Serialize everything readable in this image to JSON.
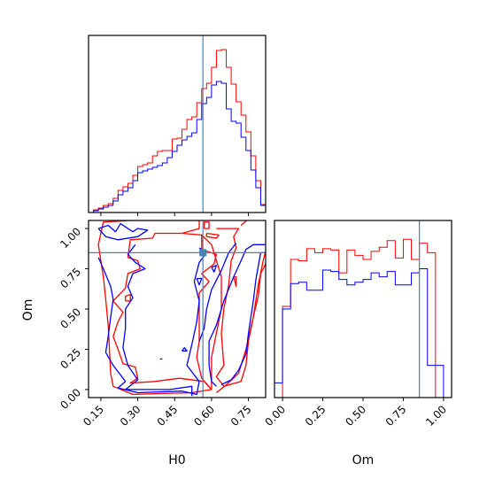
{
  "chart_data": [
    {
      "type": "histogram",
      "panel": "H0-marginal",
      "bin_edges": [
        0.1,
        0.12,
        0.14,
        0.16,
        0.18,
        0.2,
        0.22,
        0.24,
        0.26,
        0.28,
        0.3,
        0.32,
        0.34,
        0.36,
        0.38,
        0.4,
        0.42,
        0.44,
        0.46,
        0.48,
        0.5,
        0.52,
        0.54,
        0.56,
        0.58,
        0.6,
        0.62,
        0.64,
        0.66,
        0.68,
        0.7,
        0.72,
        0.74,
        0.76,
        0.78,
        0.8,
        0.82
      ],
      "series": [
        {
          "color": "#ff0000",
          "values": [
            0.0,
            0.3,
            0.5,
            0.8,
            1.0,
            1.6,
            2.5,
            2.9,
            3.3,
            4.2,
            5.2,
            5.4,
            5.6,
            6.4,
            6.9,
            7.0,
            7.0,
            8.3,
            8.4,
            9.4,
            10.5,
            10.8,
            12.4,
            14.0,
            14.6,
            16.4,
            18.3,
            18.4,
            16.4,
            14.5,
            12.5,
            11.0,
            9.1,
            6.4,
            3.6,
            0.9
          ]
        },
        {
          "color": "#0000ff",
          "values": [
            0.0,
            0.2,
            0.4,
            0.6,
            0.8,
            1.3,
            2.0,
            2.4,
            2.8,
            3.6,
            4.5,
            4.7,
            4.9,
            5.1,
            5.3,
            5.6,
            6.2,
            6.9,
            7.6,
            8.2,
            8.6,
            9.0,
            10.5,
            12.3,
            13.0,
            14.4,
            14.8,
            14.6,
            11.7,
            10.3,
            10.1,
            8.5,
            7.0,
            4.8,
            2.8,
            0.8
          ]
        }
      ],
      "truth": 0.565,
      "xlim": [
        0.1,
        0.82
      ]
    },
    {
      "type": "contour",
      "panel": "H0-vs-Om",
      "xlabel": "H0",
      "ylabel": "Om",
      "xlim": [
        0.1,
        0.82
      ],
      "ylim": [
        -0.05,
        1.05
      ],
      "xticks": [
        "0.15",
        "0.30",
        "0.45",
        "0.60",
        "0.75"
      ],
      "xtick_values": [
        0.15,
        0.3,
        0.45,
        0.6,
        0.75
      ],
      "yticks": [
        "0.00",
        "0.25",
        "0.50",
        "0.75",
        "1.00"
      ],
      "ytick_values": [
        0.0,
        0.25,
        0.5,
        0.75,
        1.0
      ],
      "truth_point": [
        0.565,
        0.85
      ],
      "series": [
        {
          "color": "#ff0000",
          "contours": [
            [
              [
                0.16,
                1.04
              ],
              [
                0.27,
                1.05
              ],
              [
                0.55,
                1.05
              ],
              [
                0.55,
                1.0
              ],
              [
                0.48,
                0.97
              ],
              [
                0.37,
                0.97
              ],
              [
                0.36,
                0.94
              ],
              [
                0.27,
                0.93
              ],
              [
                0.26,
                0.82
              ],
              [
                0.3,
                0.8
              ],
              [
                0.31,
                0.75
              ],
              [
                0.26,
                0.72
              ],
              [
                0.25,
                0.63
              ],
              [
                0.2,
                0.55
              ],
              [
                0.24,
                0.48
              ],
              [
                0.22,
                0.42
              ],
              [
                0.2,
                0.33
              ],
              [
                0.22,
                0.25
              ],
              [
                0.24,
                0.16
              ],
              [
                0.29,
                0.14
              ],
              [
                0.3,
                0.07
              ],
              [
                0.27,
                0.04
              ],
              [
                0.37,
                0.05
              ],
              [
                0.47,
                0.07
              ],
              [
                0.57,
                0.05
              ],
              [
                0.6,
                0.0
              ],
              [
                0.52,
                -0.02
              ],
              [
                0.28,
                -0.03
              ],
              [
                0.2,
                0.02
              ],
              [
                0.19,
                0.1
              ],
              [
                0.18,
                0.4
              ],
              [
                0.17,
                0.56
              ],
              [
                0.16,
                0.7
              ],
              [
                0.14,
                0.9
              ],
              [
                0.16,
                1.04
              ]
            ],
            [
              [
                0.48,
                0.97
              ],
              [
                0.56,
                0.96
              ],
              [
                0.56,
                0.87
              ],
              [
                0.62,
                0.84
              ],
              [
                0.61,
                0.78
              ],
              [
                0.56,
                0.72
              ],
              [
                0.59,
                0.67
              ],
              [
                0.55,
                0.6
              ],
              [
                0.55,
                0.45
              ],
              [
                0.55,
                0.3
              ],
              [
                0.54,
                0.2
              ],
              [
                0.56,
                0.07
              ],
              [
                0.6,
                0.0
              ],
              [
                0.6,
                0.1
              ],
              [
                0.6,
                0.2
              ],
              [
                0.62,
                0.35
              ],
              [
                0.64,
                0.5
              ],
              [
                0.64,
                0.7
              ],
              [
                0.6,
                0.9
              ],
              [
                0.56,
                0.96
              ],
              [
                0.48,
                0.97
              ]
            ],
            [
              [
                0.62,
                -0.02
              ],
              [
                0.66,
                0.03
              ],
              [
                0.71,
                0.1
              ],
              [
                0.74,
                0.25
              ],
              [
                0.77,
                0.45
              ],
              [
                0.79,
                0.58
              ],
              [
                0.8,
                0.72
              ],
              [
                0.82,
                0.78
              ]
            ],
            [
              [
                0.62,
                1.0
              ],
              [
                0.71,
                1.0
              ],
              [
                0.69,
                0.95
              ],
              [
                0.7,
                0.88
              ],
              [
                0.68,
                0.8
              ],
              [
                0.67,
                0.65
              ],
              [
                0.65,
                0.5
              ],
              [
                0.64,
                0.35
              ],
              [
                0.65,
                0.15
              ],
              [
                0.62,
                0.08
              ],
              [
                0.65,
                0.02
              ],
              [
                0.72,
                0.05
              ],
              [
                0.74,
                0.15
              ],
              [
                0.75,
                0.3
              ],
              [
                0.77,
                0.45
              ],
              [
                0.79,
                0.65
              ],
              [
                0.81,
                0.8
              ],
              [
                0.82,
                0.86
              ]
            ],
            [
              [
                0.72,
                1.02
              ],
              [
                0.75,
                1.06
              ],
              [
                0.82,
                1.05
              ]
            ],
            [
              [
                0.25,
                0.55
              ],
              [
                0.27,
                0.55
              ],
              [
                0.27,
                0.59
              ],
              [
                0.25,
                0.58
              ],
              [
                0.25,
                0.55
              ]
            ],
            [
              [
                0.69,
                0.7
              ],
              [
                0.7,
                0.64
              ],
              [
                0.7,
                0.7
              ],
              [
                0.69,
                0.7
              ]
            ],
            [
              [
                0.58,
                0.97
              ],
              [
                0.63,
                0.96
              ],
              [
                0.62,
                0.94
              ],
              [
                0.58,
                0.95
              ],
              [
                0.58,
                0.97
              ]
            ],
            [
              [
                0.57,
                1.0
              ],
              [
                0.59,
                1.0
              ],
              [
                0.59,
                1.04
              ],
              [
                0.57,
                1.04
              ],
              [
                0.57,
                1.0
              ]
            ]
          ]
        },
        {
          "color": "#0000ff",
          "contours": [
            [
              [
                0.14,
                1.0
              ],
              [
                0.18,
                1.02
              ],
              [
                0.21,
                0.98
              ],
              [
                0.23,
                1.03
              ],
              [
                0.28,
                0.98
              ],
              [
                0.3,
                1.0
              ],
              [
                0.34,
                0.99
              ],
              [
                0.3,
                0.95
              ],
              [
                0.22,
                0.93
              ],
              [
                0.17,
                0.95
              ],
              [
                0.14,
                1.0
              ]
            ],
            [
              [
                0.29,
                0.9
              ],
              [
                0.26,
                0.84
              ],
              [
                0.29,
                0.79
              ],
              [
                0.33,
                0.75
              ],
              [
                0.28,
                0.72
              ],
              [
                0.26,
                0.64
              ],
              [
                0.28,
                0.57
              ],
              [
                0.25,
                0.5
              ],
              [
                0.25,
                0.38
              ],
              [
                0.24,
                0.26
              ],
              [
                0.26,
                0.15
              ],
              [
                0.3,
                0.06
              ],
              [
                0.25,
                0.0
              ],
              [
                0.43,
                0.0
              ],
              [
                0.52,
                0.02
              ],
              [
                0.52,
                -0.04
              ]
            ],
            [
              [
                0.14,
                0.82
              ],
              [
                0.16,
                0.75
              ],
              [
                0.19,
                0.64
              ],
              [
                0.2,
                0.56
              ],
              [
                0.19,
                0.45
              ],
              [
                0.18,
                0.33
              ],
              [
                0.17,
                0.23
              ],
              [
                0.2,
                0.15
              ],
              [
                0.25,
                0.05
              ],
              [
                0.22,
                0.01
              ],
              [
                0.3,
                -0.02
              ],
              [
                0.48,
                -0.01
              ],
              [
                0.54,
                -0.03
              ],
              [
                0.55,
                0.05
              ],
              [
                0.5,
                0.15
              ],
              [
                0.52,
                0.28
              ],
              [
                0.54,
                0.42
              ],
              [
                0.55,
                0.55
              ],
              [
                0.53,
                0.67
              ],
              [
                0.55,
                0.79
              ],
              [
                0.58,
                0.85
              ],
              [
                0.55,
                0.88
              ]
            ],
            [
              [
                0.55,
                0.3
              ],
              [
                0.57,
                0.38
              ],
              [
                0.58,
                0.5
              ],
              [
                0.6,
                0.62
              ],
              [
                0.64,
                0.74
              ],
              [
                0.67,
                0.85
              ],
              [
                0.7,
                0.91
              ]
            ],
            [
              [
                0.64,
                0.03
              ],
              [
                0.68,
                0.06
              ],
              [
                0.71,
                0.12
              ],
              [
                0.74,
                0.22
              ],
              [
                0.75,
                0.35
              ],
              [
                0.77,
                0.55
              ],
              [
                0.78,
                0.68
              ],
              [
                0.8,
                0.85
              ],
              [
                0.82,
                0.85
              ]
            ],
            [
              [
                0.62,
                0.02
              ],
              [
                0.6,
                0.05
              ],
              [
                0.59,
                0.15
              ],
              [
                0.59,
                0.3
              ],
              [
                0.62,
                0.4
              ],
              [
                0.65,
                0.55
              ],
              [
                0.69,
                0.7
              ],
              [
                0.72,
                0.8
              ],
              [
                0.74,
                0.87
              ],
              [
                0.77,
                0.9
              ],
              [
                0.82,
                0.9
              ]
            ],
            [
              [
                0.6,
                0.76
              ],
              [
                0.61,
                0.73
              ],
              [
                0.62,
                0.77
              ],
              [
                0.6,
                0.76
              ]
            ],
            [
              [
                0.48,
                0.24
              ],
              [
                0.5,
                0.24
              ],
              [
                0.49,
                0.26
              ],
              [
                0.48,
                0.24
              ]
            ],
            [
              [
                0.54,
                0.69
              ],
              [
                0.55,
                0.65
              ],
              [
                0.56,
                0.69
              ],
              [
                0.54,
                0.69
              ]
            ],
            [
              [
                0.39,
                0.19
              ],
              [
                0.4,
                0.19
              ]
            ]
          ]
        }
      ]
    },
    {
      "type": "histogram",
      "panel": "Om-marginal",
      "xlabel": "Om",
      "xlim": [
        -0.05,
        1.05
      ],
      "xticks": [
        "0.00",
        "0.25",
        "0.50",
        "0.75",
        "1.00"
      ],
      "xtick_values": [
        0.0,
        0.25,
        0.5,
        0.75,
        1.0
      ],
      "bin_edges": [
        -0.05,
        0.0,
        0.05,
        0.1,
        0.15,
        0.2,
        0.25,
        0.3,
        0.35,
        0.4,
        0.45,
        0.5,
        0.55,
        0.6,
        0.65,
        0.7,
        0.75,
        0.8,
        0.85,
        0.9,
        0.95,
        1.0,
        1.05
      ],
      "series": [
        {
          "color": "#ff0000",
          "values": [
            0.0,
            6.8,
            10.3,
            10.2,
            11.1,
            10.8,
            11.1,
            11.0,
            9.3,
            11.0,
            10.6,
            10.3,
            10.9,
            11.2,
            11.7,
            10.4,
            11.8,
            10.3,
            11.5,
            10.8,
            0.0,
            0.0
          ]
        },
        {
          "color": "#0000ff",
          "values": [
            1.1,
            6.6,
            8.5,
            8.6,
            8.0,
            8.0,
            9.5,
            9.4,
            8.8,
            8.4,
            8.6,
            8.8,
            9.3,
            9.0,
            9.4,
            8.4,
            8.4,
            9.3,
            9.6,
            2.4,
            2.4,
            0.0
          ]
        }
      ],
      "truth": 0.85
    }
  ]
}
